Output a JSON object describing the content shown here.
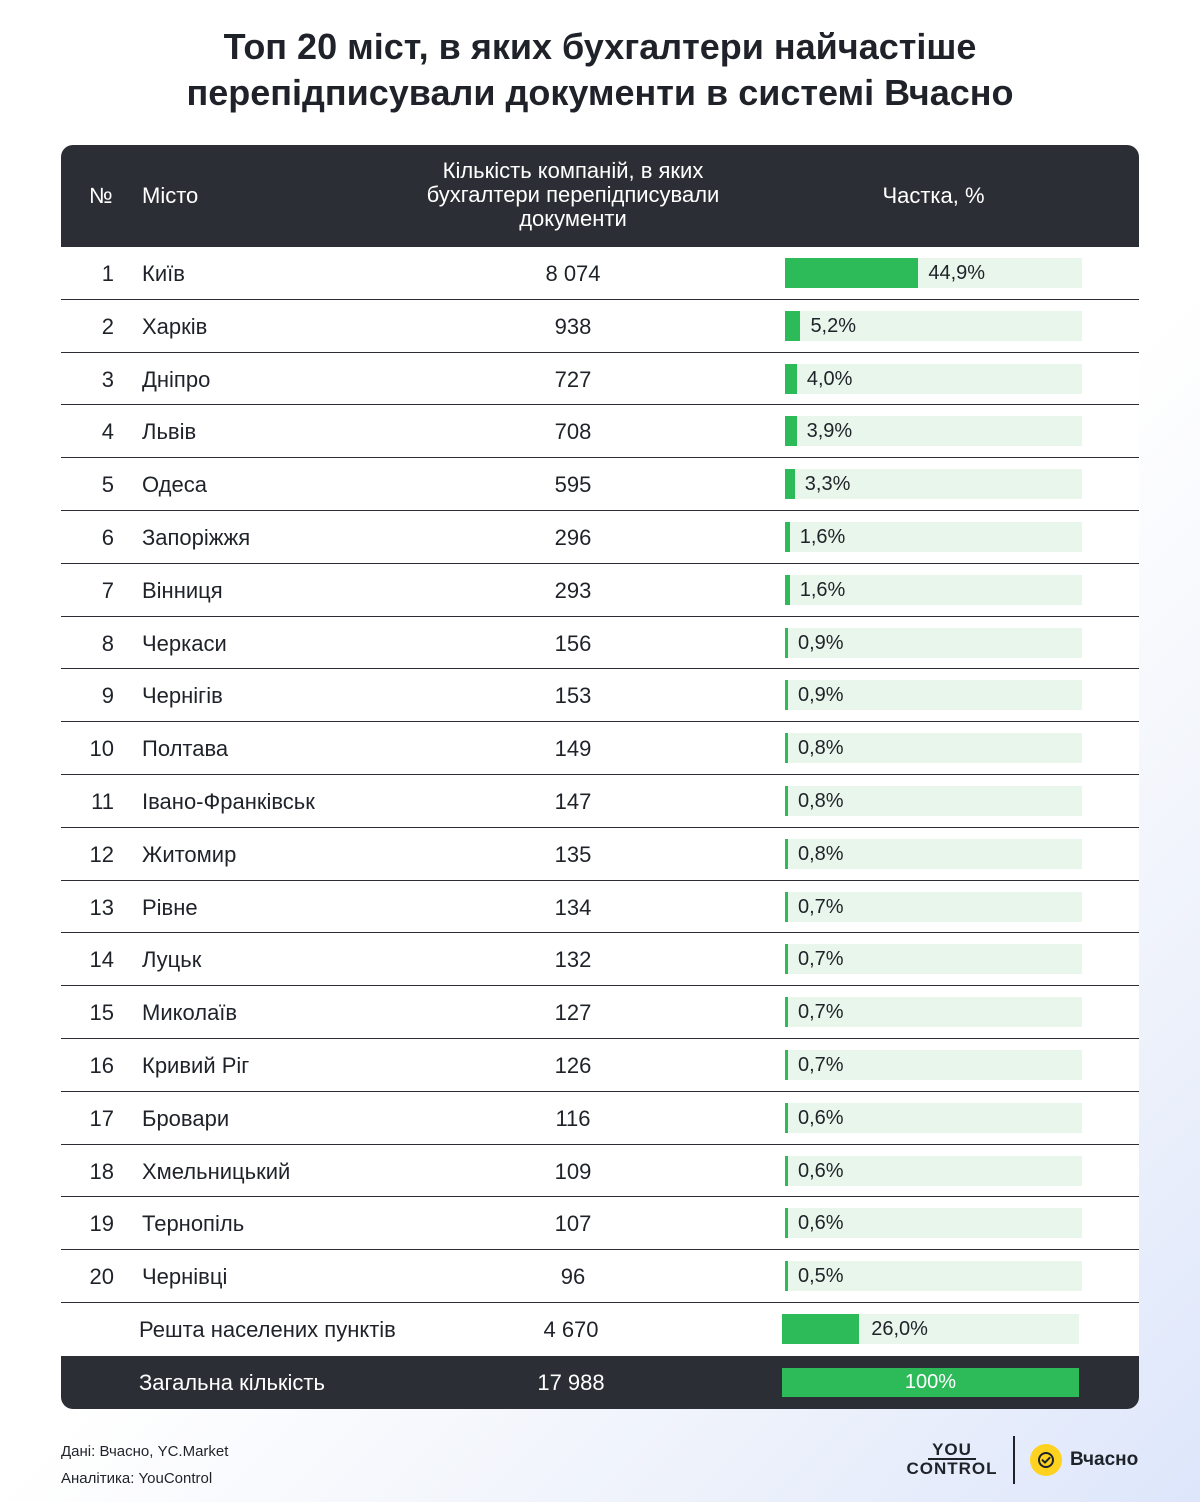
{
  "title": {
    "line1": "Топ 20 міст, в яких бухгалтери найчастіше",
    "line2": "перепідписували документи в системі Вчасно"
  },
  "table": {
    "headers": {
      "num": "№",
      "city": "Місто",
      "count_line1": "Кількість компаній, в яких",
      "count_line2": "бухгалтери перепідписували",
      "count_line3": "документи",
      "share": "Частка, %"
    }
  },
  "chart_data": {
    "type": "table",
    "columns": [
      "№",
      "Місто",
      "Кількість компаній, в яких бухгалтери перепідписували документи",
      "Частка, %"
    ],
    "rows": [
      {
        "num": "1",
        "city": "Київ",
        "count": "8 074",
        "share": 44.9,
        "share_label": "44,9%"
      },
      {
        "num": "2",
        "city": "Харків",
        "count": "938",
        "share": 5.2,
        "share_label": "5,2%"
      },
      {
        "num": "3",
        "city": "Дніпро",
        "count": "727",
        "share": 4.0,
        "share_label": "4,0%"
      },
      {
        "num": "4",
        "city": "Львів",
        "count": "708",
        "share": 3.9,
        "share_label": "3,9%"
      },
      {
        "num": "5",
        "city": "Одеса",
        "count": "595",
        "share": 3.3,
        "share_label": "3,3%"
      },
      {
        "num": "6",
        "city": "Запоріжжя",
        "count": "296",
        "share": 1.6,
        "share_label": "1,6%"
      },
      {
        "num": "7",
        "city": "Вінниця",
        "count": "293",
        "share": 1.6,
        "share_label": "1,6%"
      },
      {
        "num": "8",
        "city": "Черкаси",
        "count": "156",
        "share": 0.9,
        "share_label": "0,9%"
      },
      {
        "num": "9",
        "city": "Чернігів",
        "count": "153",
        "share": 0.9,
        "share_label": "0,9%"
      },
      {
        "num": "10",
        "city": "Полтава",
        "count": "149",
        "share": 0.8,
        "share_label": "0,8%"
      },
      {
        "num": "11",
        "city": "Івано-Франківськ",
        "count": "147",
        "share": 0.8,
        "share_label": "0,8%"
      },
      {
        "num": "12",
        "city": "Житомир",
        "count": "135",
        "share": 0.8,
        "share_label": "0,8%"
      },
      {
        "num": "13",
        "city": "Рівне",
        "count": "134",
        "share": 0.7,
        "share_label": "0,7%"
      },
      {
        "num": "14",
        "city": "Луцьк",
        "count": "132",
        "share": 0.7,
        "share_label": "0,7%"
      },
      {
        "num": "15",
        "city": "Миколаїв",
        "count": "127",
        "share": 0.7,
        "share_label": "0,7%"
      },
      {
        "num": "16",
        "city": "Кривий Ріг",
        "count": "126",
        "share": 0.7,
        "share_label": "0,7%"
      },
      {
        "num": "17",
        "city": "Бровари",
        "count": "116",
        "share": 0.6,
        "share_label": "0,6%"
      },
      {
        "num": "18",
        "city": "Хмельницький",
        "count": "109",
        "share": 0.6,
        "share_label": "0,6%"
      },
      {
        "num": "19",
        "city": "Тернопіль",
        "count": "107",
        "share": 0.6,
        "share_label": "0,6%"
      },
      {
        "num": "20",
        "city": "Чернівці",
        "count": "96",
        "share": 0.5,
        "share_label": "0,5%"
      }
    ],
    "rest": {
      "city": "Решта населених пунктів",
      "count": "4 670",
      "share": 26.0,
      "share_label": "26,0%"
    },
    "total": {
      "city": "Загальна кількість",
      "count": "17 988",
      "share": 100,
      "share_label": "100%"
    },
    "bar_color": "#2dbb5a",
    "track_color": "#e9f6ec",
    "header_color": "#2b2e34"
  },
  "footer": {
    "source": "Дані: Вчасно, YC.Market",
    "analytics": "Аналітика: YouControl"
  },
  "logos": {
    "youcontrol_line1": "YOU",
    "youcontrol_line2": "CONTROL",
    "vchasno": "Вчасно",
    "vchasno_icon": "check-circle-icon"
  }
}
